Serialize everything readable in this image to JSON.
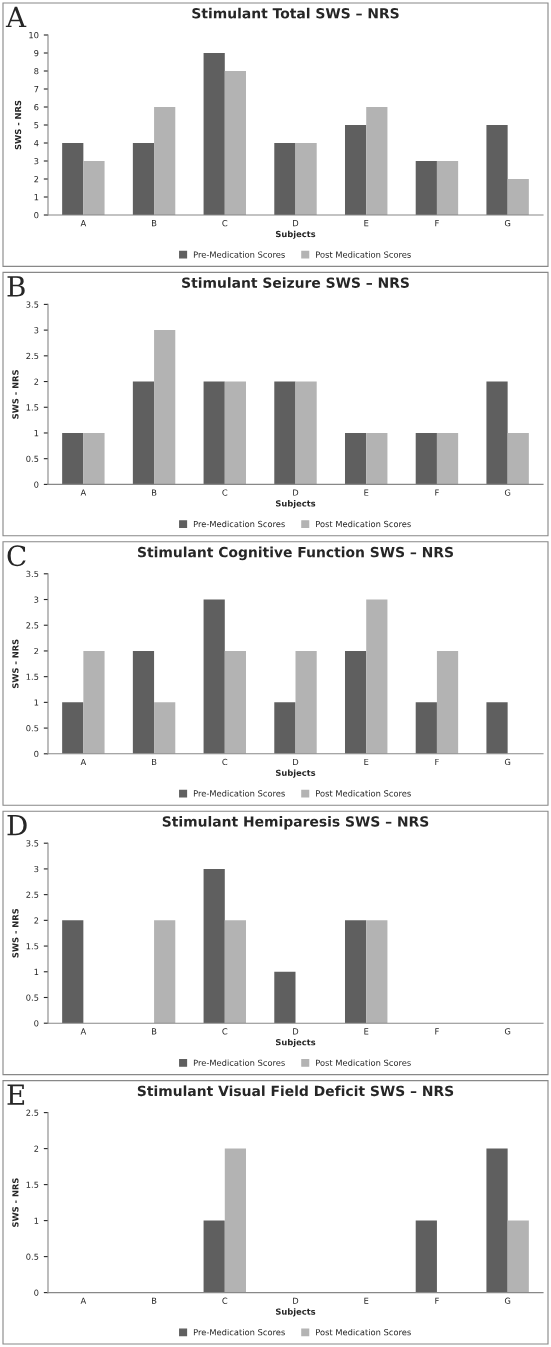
{
  "chart_data": [
    {
      "type": "bar",
      "title": "Stimulant Total SWS – NRS",
      "xlabel": "Subjects",
      "ylabel": "SWS - NRS",
      "annotations": [
        "A"
      ],
      "categories": [
        "A",
        "B",
        "C",
        "D",
        "E",
        "F",
        "G"
      ],
      "series": [
        {
          "name": "Pre-Medication Scores",
          "color": "#5f5f5f",
          "values": [
            4,
            4,
            9,
            4,
            5,
            3,
            5
          ]
        },
        {
          "name": "Post Medication Scores",
          "color": "#b3b3b3",
          "values": [
            3,
            6,
            8,
            4,
            6,
            3,
            2
          ]
        }
      ],
      "ylim": [
        0,
        10
      ],
      "yticks": [
        0,
        1,
        2,
        3,
        4,
        5,
        6,
        7,
        8,
        9,
        10
      ],
      "grid": false,
      "legend": "bottom"
    },
    {
      "type": "bar",
      "title": "Stimulant Seizure SWS – NRS",
      "xlabel": "Subjects",
      "ylabel": "SWS - NRS",
      "annotations": [
        "B"
      ],
      "categories": [
        "A",
        "B",
        "C",
        "D",
        "E",
        "F",
        "G"
      ],
      "series": [
        {
          "name": "Pre-Medication Scores",
          "color": "#5f5f5f",
          "values": [
            1,
            2,
            2,
            2,
            1,
            1,
            2
          ]
        },
        {
          "name": "Post Medication Scores",
          "color": "#b3b3b3",
          "values": [
            1,
            3,
            2,
            2,
            1,
            1,
            1
          ]
        }
      ],
      "ylim": [
        0,
        3.5
      ],
      "yticks": [
        0,
        0.5,
        1,
        1.5,
        2,
        2.5,
        3,
        3.5
      ],
      "grid": false,
      "legend": "bottom"
    },
    {
      "type": "bar",
      "title": "Stimulant Cognitive Function SWS – NRS",
      "xlabel": "Subjects",
      "ylabel": "SWS - NRS",
      "annotations": [
        "C"
      ],
      "categories": [
        "A",
        "B",
        "C",
        "D",
        "E",
        "F",
        "G"
      ],
      "series": [
        {
          "name": "Pre-Medication Scores",
          "color": "#5f5f5f",
          "values": [
            1,
            2,
            3,
            1,
            2,
            1,
            1
          ]
        },
        {
          "name": "Post Medication Scores",
          "color": "#b3b3b3",
          "values": [
            2,
            1,
            2,
            2,
            3,
            2,
            0
          ]
        }
      ],
      "ylim": [
        0,
        3.5
      ],
      "yticks": [
        0,
        0.5,
        1,
        1.5,
        2,
        2.5,
        3,
        3.5
      ],
      "grid": false,
      "legend": "bottom"
    },
    {
      "type": "bar",
      "title": "Stimulant Hemiparesis SWS – NRS",
      "xlabel": "Subjects",
      "ylabel": "SWS - NRS",
      "annotations": [
        "D"
      ],
      "categories": [
        "A",
        "B",
        "C",
        "D",
        "E",
        "F",
        "G"
      ],
      "series": [
        {
          "name": "Pre-Medication Scores",
          "color": "#5f5f5f",
          "values": [
            2,
            0,
            3,
            1,
            2,
            0,
            0
          ]
        },
        {
          "name": "Post Medication Scores",
          "color": "#b3b3b3",
          "values": [
            0,
            2,
            2,
            0,
            2,
            0,
            0
          ]
        }
      ],
      "ylim": [
        0,
        3.5
      ],
      "yticks": [
        0,
        0.5,
        1,
        1.5,
        2,
        2.5,
        3,
        3.5
      ],
      "grid": false,
      "legend": "bottom"
    },
    {
      "type": "bar",
      "title": "Stimulant Visual Field Deficit SWS – NRS",
      "xlabel": "Subjects",
      "ylabel": "SWS - NRS",
      "annotations": [
        "E"
      ],
      "categories": [
        "A",
        "B",
        "C",
        "D",
        "E",
        "F",
        "G"
      ],
      "series": [
        {
          "name": "Pre-Medication Scores",
          "color": "#5f5f5f",
          "values": [
            0,
            0,
            1,
            0,
            0,
            1,
            2
          ]
        },
        {
          "name": "Post Medication Scores",
          "color": "#b3b3b3",
          "values": [
            0,
            0,
            2,
            0,
            0,
            0,
            1
          ]
        }
      ],
      "ylim": [
        0,
        2.5
      ],
      "yticks": [
        0,
        0.5,
        1,
        1.5,
        2,
        2.5
      ],
      "grid": false,
      "legend": "bottom"
    }
  ]
}
